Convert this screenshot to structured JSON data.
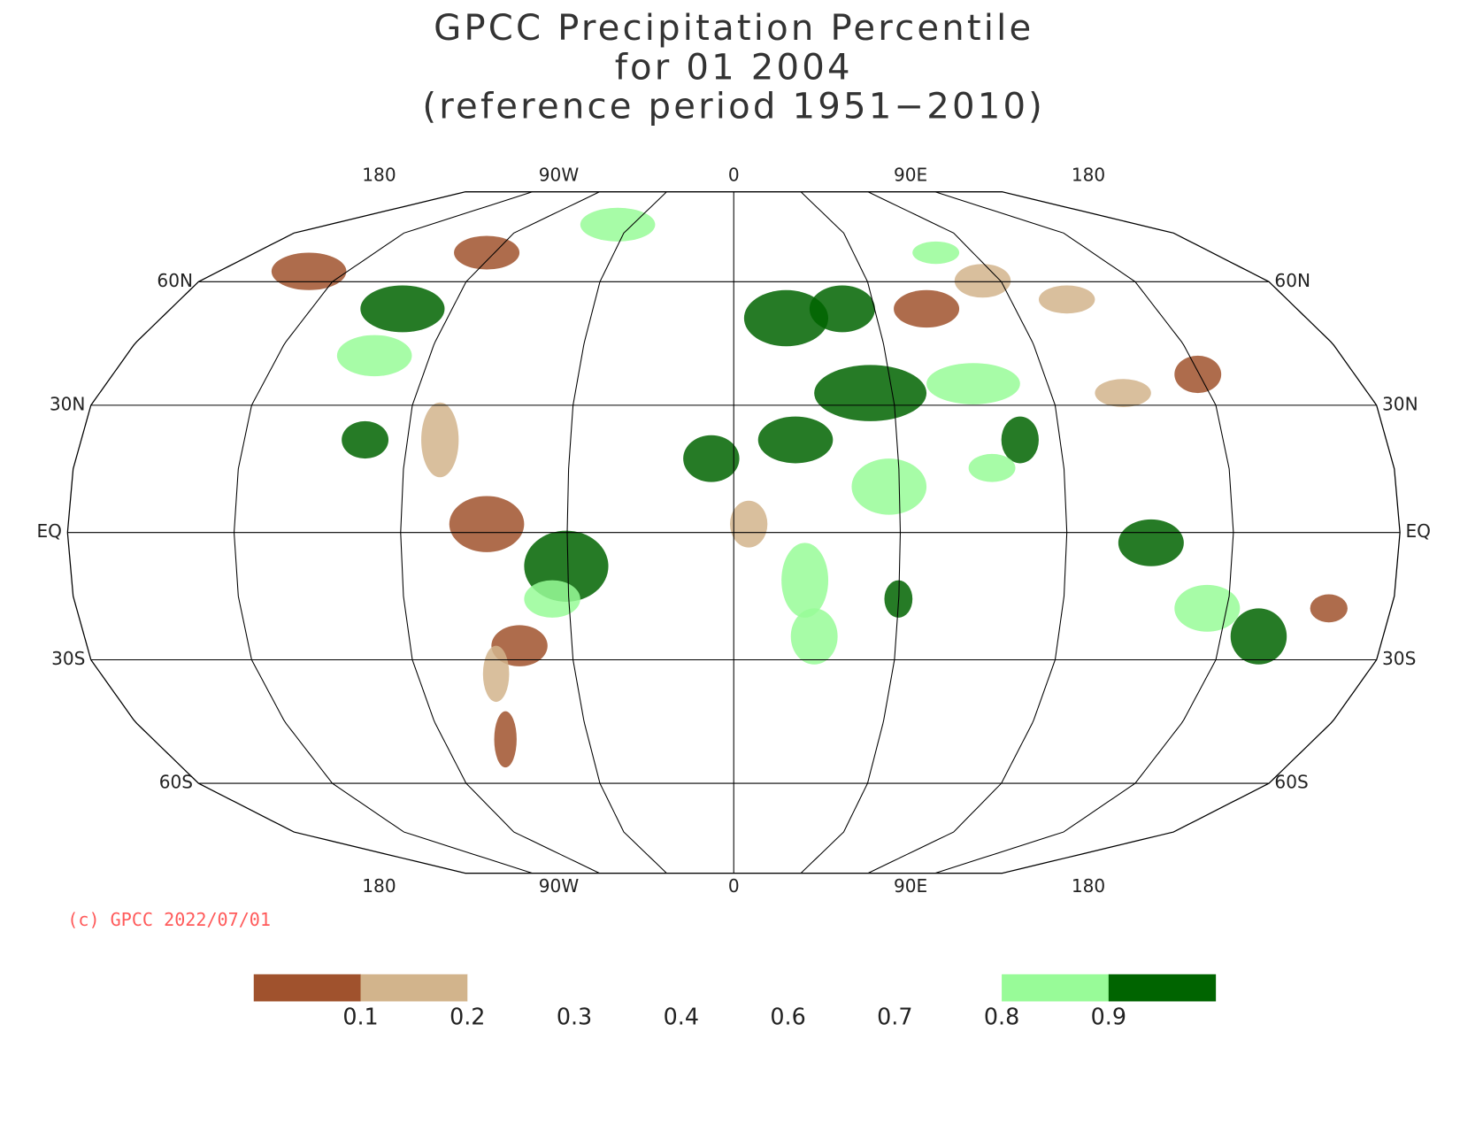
{
  "title": [
    "GPCC Precipitation Percentile",
    "for 01 2004",
    "(reference period 1951−2010)"
  ],
  "map": {
    "top_lon_labels": [
      "180",
      "90W",
      "0",
      "90E",
      "180"
    ],
    "bottom_lon_labels": [
      "180",
      "90W",
      "0",
      "90E",
      "180"
    ],
    "lat_labels": [
      "60N",
      "30N",
      "EQ",
      "30S",
      "60S"
    ]
  },
  "copyright": "(c) GPCC 2022/07/01",
  "legend": {
    "colors": [
      "#a0522d",
      "#d2b48c",
      "#ffffff",
      "#ffffff",
      "#ffffff",
      "#ffffff",
      "#ffffff",
      "#98fb98",
      "#006400"
    ],
    "labels": [
      "0.1",
      "0.2",
      "0.3",
      "0.4",
      "0.6",
      "0.7",
      "0.8",
      "0.9"
    ]
  }
}
